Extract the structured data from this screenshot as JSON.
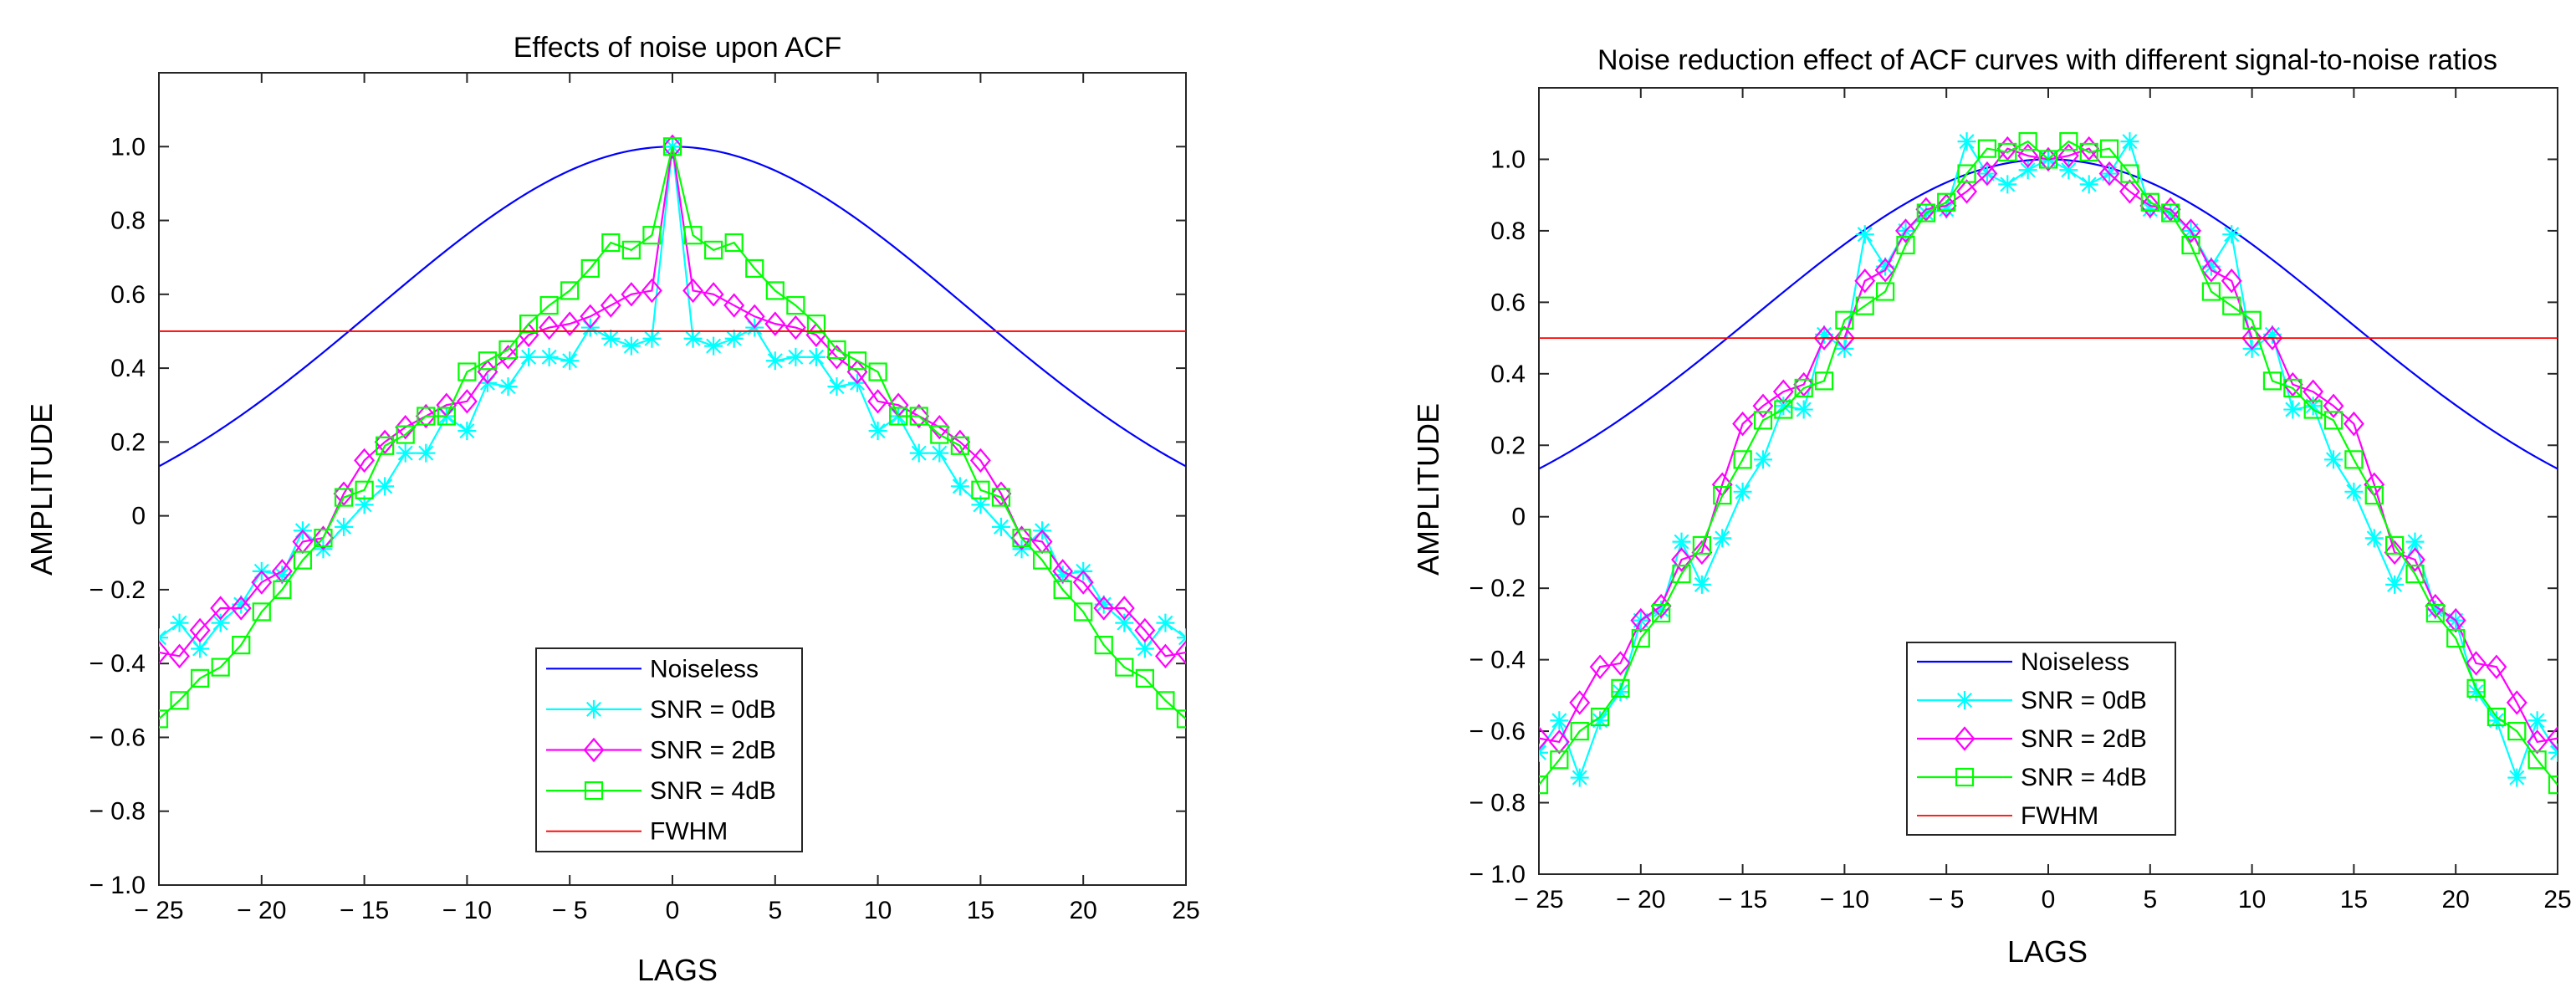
{
  "chart_data": [
    {
      "type": "line",
      "title": "Effects of noise upon ACF",
      "xlabel": "LAGS",
      "ylabel": "AMPLITUDE",
      "xlim": [
        -25,
        25
      ],
      "ylim": [
        -1.0,
        1.2
      ],
      "xticks": [
        -25,
        -20,
        -15,
        -10,
        -5,
        0,
        5,
        10,
        15,
        20,
        25
      ],
      "xtick_labels": [
        "− 25",
        "− 20",
        "− 15",
        "− 10",
        "− 5",
        "0",
        "5",
        "10",
        "15",
        "20",
        "25"
      ],
      "yticks": [
        -1.0,
        -0.8,
        -0.6,
        -0.4,
        -0.2,
        0,
        0.2,
        0.4,
        0.6,
        0.8,
        1.0
      ],
      "ytick_labels": [
        "− 1.0",
        "− 0.8",
        "− 0.6",
        "− 0.4",
        "− 0.2",
        "0",
        "0.2",
        "0.4",
        "0.6",
        "0.8",
        "1.0"
      ],
      "grid": false,
      "legend_position": "bottom-center",
      "series": [
        {
          "name": "Noiseless",
          "color": "#0000ff",
          "marker": "none",
          "model": "gaussian",
          "peak": 1.0,
          "offset": 0.115,
          "sigma": 14.44
        },
        {
          "name": "SNR = 0dB",
          "color": "#00ffff",
          "marker": "star",
          "x": [
            -25,
            -24,
            -23,
            -22,
            -21,
            -20,
            -19,
            -18,
            -17,
            -16,
            -15,
            -14,
            -13,
            -12,
            -11,
            -10,
            -9,
            -8,
            -7,
            -6,
            -5,
            -4,
            -3,
            -2,
            -1,
            0,
            1,
            2,
            3,
            4,
            5,
            6,
            7,
            8,
            9,
            10,
            11,
            12,
            13,
            14,
            15,
            16,
            17,
            18,
            19,
            20,
            21,
            22,
            23,
            24,
            25
          ],
          "y": [
            -0.33,
            -0.29,
            -0.36,
            -0.29,
            -0.24,
            -0.15,
            -0.16,
            -0.04,
            -0.09,
            -0.03,
            0.03,
            0.08,
            0.17,
            0.17,
            0.27,
            0.23,
            0.36,
            0.35,
            0.43,
            0.43,
            0.42,
            0.51,
            0.48,
            0.46,
            0.48,
            1.0,
            0.48,
            0.46,
            0.48,
            0.51,
            0.42,
            0.43,
            0.43,
            0.35,
            0.36,
            0.23,
            0.27,
            0.17,
            0.17,
            0.08,
            0.03,
            -0.03,
            -0.09,
            -0.04,
            -0.16,
            -0.15,
            -0.24,
            -0.29,
            -0.36,
            -0.29,
            -0.33
          ]
        },
        {
          "name": "SNR = 2dB",
          "color": "#ff00ff",
          "marker": "diamond",
          "x": [
            -25,
            -24,
            -23,
            -22,
            -21,
            -20,
            -19,
            -18,
            -17,
            -16,
            -15,
            -14,
            -13,
            -12,
            -11,
            -10,
            -9,
            -8,
            -7,
            -6,
            -5,
            -4,
            -3,
            -2,
            -1,
            0,
            1,
            2,
            3,
            4,
            5,
            6,
            7,
            8,
            9,
            10,
            11,
            12,
            13,
            14,
            15,
            16,
            17,
            18,
            19,
            20,
            21,
            22,
            23,
            24,
            25
          ],
          "y": [
            -0.37,
            -0.38,
            -0.31,
            -0.25,
            -0.25,
            -0.18,
            -0.15,
            -0.07,
            -0.06,
            0.06,
            0.15,
            0.2,
            0.24,
            0.27,
            0.3,
            0.31,
            0.39,
            0.43,
            0.49,
            0.51,
            0.52,
            0.54,
            0.57,
            0.6,
            0.61,
            1.0,
            0.61,
            0.6,
            0.57,
            0.54,
            0.52,
            0.51,
            0.49,
            0.43,
            0.39,
            0.31,
            0.3,
            0.27,
            0.24,
            0.2,
            0.15,
            0.06,
            -0.06,
            -0.07,
            -0.15,
            -0.18,
            -0.25,
            -0.25,
            -0.31,
            -0.38,
            -0.37
          ]
        },
        {
          "name": "SNR = 4dB",
          "color": "#00ff00",
          "marker": "square",
          "x": [
            -25,
            -24,
            -23,
            -22,
            -21,
            -20,
            -19,
            -18,
            -17,
            -16,
            -15,
            -14,
            -13,
            -12,
            -11,
            -10,
            -9,
            -8,
            -7,
            -6,
            -5,
            -4,
            -3,
            -2,
            -1,
            0,
            1,
            2,
            3,
            4,
            5,
            6,
            7,
            8,
            9,
            10,
            11,
            12,
            13,
            14,
            15,
            16,
            17,
            18,
            19,
            20,
            21,
            22,
            23,
            24,
            25
          ],
          "y": [
            -0.55,
            -0.5,
            -0.44,
            -0.41,
            -0.35,
            -0.26,
            -0.2,
            -0.12,
            -0.06,
            0.05,
            0.07,
            0.19,
            0.22,
            0.27,
            0.27,
            0.39,
            0.42,
            0.45,
            0.52,
            0.57,
            0.61,
            0.67,
            0.74,
            0.72,
            0.76,
            1.0,
            0.76,
            0.72,
            0.74,
            0.67,
            0.61,
            0.57,
            0.52,
            0.45,
            0.42,
            0.39,
            0.27,
            0.27,
            0.22,
            0.19,
            0.07,
            0.05,
            -0.06,
            -0.12,
            -0.2,
            -0.26,
            -0.35,
            -0.41,
            -0.44,
            -0.5,
            -0.55
          ]
        },
        {
          "name": "FWHM",
          "color": "#ff0000",
          "marker": "none",
          "x": [
            -25,
            25
          ],
          "y": [
            0.5,
            0.5
          ]
        }
      ]
    },
    {
      "type": "line",
      "title": "Noise reduction effect of ACF curves with different signal-to-noise ratios",
      "xlabel": "LAGS",
      "ylabel": "AMPLITUDE",
      "xlim": [
        -25,
        25
      ],
      "ylim": [
        -1.0,
        1.2
      ],
      "xticks": [
        -25,
        -20,
        -15,
        -10,
        -5,
        0,
        5,
        10,
        15,
        20,
        25
      ],
      "xtick_labels": [
        "− 25",
        "− 20",
        "− 15",
        "− 10",
        "− 5",
        "0",
        "5",
        "10",
        "15",
        "20",
        "25"
      ],
      "yticks": [
        -1.0,
        -0.8,
        -0.6,
        -0.4,
        -0.2,
        0,
        0.2,
        0.4,
        0.6,
        0.8,
        1.0
      ],
      "ytick_labels": [
        "− 1.0",
        "− 0.8",
        "− 0.6",
        "− 0.4",
        "− 0.2",
        "0",
        "0.2",
        "0.4",
        "0.6",
        "0.8",
        "1.0"
      ],
      "grid": false,
      "legend_position": "bottom-center",
      "series": [
        {
          "name": "Noiseless",
          "color": "#0000ff",
          "marker": "none",
          "model": "gaussian",
          "peak": 1.0,
          "offset": 0.115,
          "sigma": 14.44
        },
        {
          "name": "SNR = 0dB",
          "color": "#00ffff",
          "marker": "star",
          "x": [
            -25,
            -24,
            -23,
            -22,
            -21,
            -20,
            -19,
            -18,
            -17,
            -16,
            -15,
            -14,
            -13,
            -12,
            -11,
            -10,
            -9,
            -8,
            -7,
            -6,
            -5,
            -4,
            -3,
            -2,
            -1,
            0,
            1,
            2,
            3,
            4,
            5,
            6,
            7,
            8,
            9,
            10,
            11,
            12,
            13,
            14,
            15,
            16,
            17,
            18,
            19,
            20,
            21,
            22,
            23,
            24,
            25
          ],
          "y": [
            -0.66,
            -0.57,
            -0.73,
            -0.57,
            -0.49,
            -0.29,
            -0.26,
            -0.07,
            -0.19,
            -0.06,
            0.07,
            0.16,
            0.31,
            0.3,
            0.51,
            0.47,
            0.79,
            0.7,
            0.8,
            0.85,
            0.86,
            1.05,
            0.96,
            0.93,
            0.97,
            1.0,
            0.97,
            0.93,
            0.96,
            1.05,
            0.86,
            0.85,
            0.8,
            0.7,
            0.79,
            0.47,
            0.51,
            0.3,
            0.31,
            0.16,
            0.07,
            -0.06,
            -0.19,
            -0.07,
            -0.26,
            -0.29,
            -0.49,
            -0.57,
            -0.73,
            -0.57,
            -0.66
          ]
        },
        {
          "name": "SNR = 2dB",
          "color": "#ff00ff",
          "marker": "diamond",
          "x": [
            -25,
            -24,
            -23,
            -22,
            -21,
            -20,
            -19,
            -18,
            -17,
            -16,
            -15,
            -14,
            -13,
            -12,
            -11,
            -10,
            -9,
            -8,
            -7,
            -6,
            -5,
            -4,
            -3,
            -2,
            -1,
            0,
            1,
            2,
            3,
            4,
            5,
            6,
            7,
            8,
            9,
            10,
            11,
            12,
            13,
            14,
            15,
            16,
            17,
            18,
            19,
            20,
            21,
            22,
            23,
            24,
            25
          ],
          "y": [
            -0.62,
            -0.63,
            -0.52,
            -0.42,
            -0.41,
            -0.29,
            -0.25,
            -0.12,
            -0.1,
            0.09,
            0.26,
            0.31,
            0.35,
            0.37,
            0.5,
            0.5,
            0.66,
            0.69,
            0.8,
            0.86,
            0.87,
            0.91,
            0.96,
            1.03,
            1.01,
            1.0,
            1.01,
            1.03,
            0.96,
            0.91,
            0.87,
            0.86,
            0.8,
            0.69,
            0.66,
            0.5,
            0.5,
            0.37,
            0.35,
            0.31,
            0.26,
            0.09,
            -0.1,
            -0.12,
            -0.25,
            -0.29,
            -0.41,
            -0.42,
            -0.52,
            -0.63,
            -0.62
          ]
        },
        {
          "name": "SNR = 4dB",
          "color": "#00ff00",
          "marker": "square",
          "x": [
            -25,
            -24,
            -23,
            -22,
            -21,
            -20,
            -19,
            -18,
            -17,
            -16,
            -15,
            -14,
            -13,
            -12,
            -11,
            -10,
            -9,
            -8,
            -7,
            -6,
            -5,
            -4,
            -3,
            -2,
            -1,
            0,
            1,
            2,
            3,
            4,
            5,
            6,
            7,
            8,
            9,
            10,
            11,
            12,
            13,
            14,
            15,
            16,
            17,
            18,
            19,
            20,
            21,
            22,
            23,
            24,
            25
          ],
          "y": [
            -0.75,
            -0.68,
            -0.6,
            -0.56,
            -0.48,
            -0.34,
            -0.27,
            -0.16,
            -0.08,
            0.06,
            0.16,
            0.27,
            0.3,
            0.36,
            0.38,
            0.55,
            0.59,
            0.63,
            0.76,
            0.85,
            0.88,
            0.96,
            1.03,
            1.02,
            1.05,
            1.0,
            1.05,
            1.02,
            1.03,
            0.96,
            0.88,
            0.85,
            0.76,
            0.63,
            0.59,
            0.55,
            0.38,
            0.36,
            0.3,
            0.27,
            0.16,
            0.06,
            -0.08,
            -0.16,
            -0.27,
            -0.34,
            -0.48,
            -0.56,
            -0.6,
            -0.68,
            -0.75
          ]
        },
        {
          "name": "FWHM",
          "color": "#ff0000",
          "marker": "none",
          "x": [
            -25,
            25
          ],
          "y": [
            0.5,
            0.5
          ]
        }
      ]
    }
  ]
}
